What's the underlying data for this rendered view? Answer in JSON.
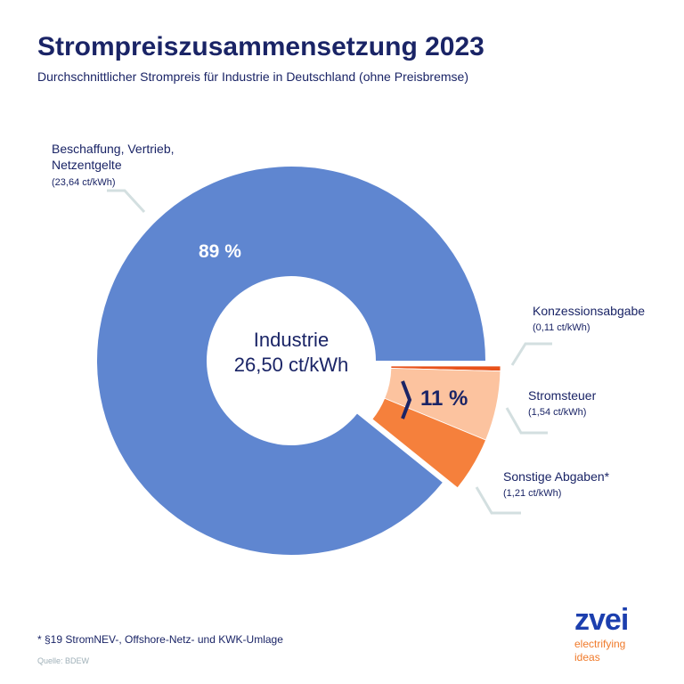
{
  "title": "Strompreiszusammensetzung 2023",
  "subtitle": "Durchschnittlicher Strompreis für Industrie in Deutschland (ohne Preisbremse)",
  "chart_data": {
    "type": "pie",
    "variant": "donut",
    "center_label": [
      "Industrie",
      "26,50 ct/kWh"
    ],
    "total": 26.5,
    "unit": "ct/kWh",
    "slices": [
      {
        "name": "Beschaffung, Vertrieb, Netzentgelte",
        "value": 23.64,
        "value_label": "(23,64 ct/kWh)",
        "color": "#5f86d0"
      },
      {
        "name": "Konzessionsabgabe",
        "value": 0.11,
        "value_label": "(0,11 ct/kWh)",
        "color": "#e8521a"
      },
      {
        "name": "Stromsteuer",
        "value": 1.54,
        "value_label": "(1,54 ct/kWh)",
        "color": "#fcc39f"
      },
      {
        "name": "Sonstige Abgaben*",
        "value": 1.21,
        "value_label": "(1,21 ct/kWh)",
        "color": "#f5803c"
      }
    ],
    "percent_labels": {
      "main": "89 %",
      "group": "11 %"
    }
  },
  "footnote": "* §19 StromNEV-, Offshore-Netz- und KWK-Umlage",
  "source": "Quelle: BDEW",
  "logo": {
    "name": "zvei",
    "tagline1": "electrifying",
    "tagline2": "ideas"
  }
}
